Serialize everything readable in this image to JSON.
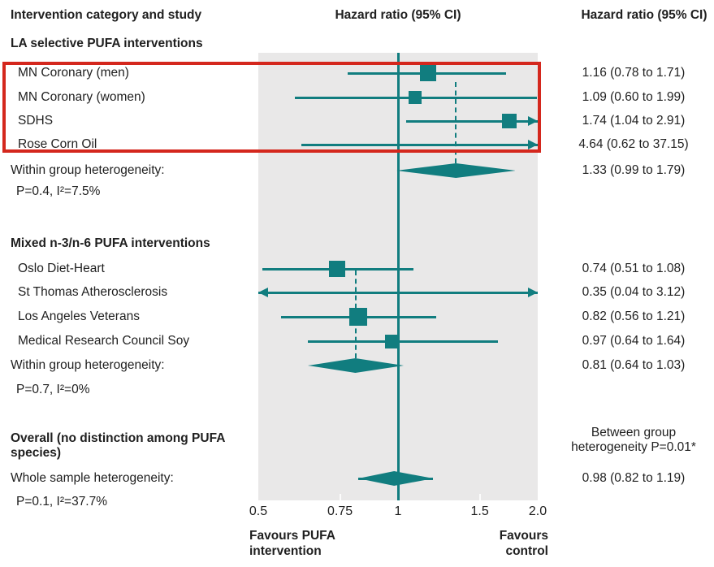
{
  "header": {
    "left": "Intervention category and study",
    "center": "Hazard ratio (95% CI)",
    "right": "Hazard ratio (95% CI)"
  },
  "colors": {
    "teal": "#117d7f",
    "plot_background": "#e9e8e8",
    "highlight_red": "#d4271d",
    "text": "#1f1f1f"
  },
  "chart_data": {
    "type": "forest",
    "x_scale": "log",
    "x_axis": {
      "min": 0.5,
      "max": 2.0,
      "reference_line": 1,
      "ticks": [
        {
          "value": 0.5,
          "label": "0.5"
        },
        {
          "value": 0.75,
          "label": "0.75"
        },
        {
          "value": 1,
          "label": "1"
        },
        {
          "value": 1.5,
          "label": "1.5"
        },
        {
          "value": 2,
          "label": "2.0"
        }
      ]
    },
    "direction_labels": {
      "left": [
        "Favours PUFA",
        "intervention"
      ],
      "right": [
        "Favours",
        "control"
      ]
    },
    "groups": [
      {
        "header": "LA selective PUFA interventions",
        "studies": [
          {
            "label": "MN Coronary (men)",
            "hr": 1.16,
            "ci_low": 0.78,
            "ci_high": 1.71,
            "ci_text": "1.16 (0.78 to 1.71)",
            "marker_size": 20
          },
          {
            "label": "MN Coronary (women)",
            "hr": 1.09,
            "ci_low": 0.6,
            "ci_high": 1.99,
            "ci_text": "1.09 (0.60 to 1.99)",
            "marker_size": 16
          },
          {
            "label": "SDHS",
            "hr": 1.74,
            "ci_low": 1.04,
            "ci_high": 2.91,
            "ci_text": "1.74 (1.04 to 2.91)",
            "marker_size": 18
          },
          {
            "label": "Rose Corn Oil",
            "hr": 4.64,
            "ci_low": 0.62,
            "ci_high": 37.15,
            "ci_text": "4.64 (0.62 to 37.15)"
          }
        ],
        "summary": {
          "label": "Within group heterogeneity:",
          "hr": 1.33,
          "ci_low": 0.99,
          "ci_high": 1.79,
          "ci_text": "1.33 (0.99 to 1.79)",
          "stats": "P=0.4, I²=7.5%"
        }
      },
      {
        "header": "Mixed n-3/n-6 PUFA interventions",
        "studies": [
          {
            "label": "Oslo Diet-Heart",
            "hr": 0.74,
            "ci_low": 0.51,
            "ci_high": 1.08,
            "ci_text": "0.74 (0.51 to 1.08)",
            "marker_size": 20
          },
          {
            "label": "St Thomas Atherosclerosis",
            "hr": 0.35,
            "ci_low": 0.04,
            "ci_high": 3.12,
            "ci_text": "0.35 (0.04 to 3.12)"
          },
          {
            "label": "Los Angeles Veterans",
            "hr": 0.82,
            "ci_low": 0.56,
            "ci_high": 1.21,
            "ci_text": "0.82 (0.56 to 1.21)",
            "marker_size": 22
          },
          {
            "label": "Medical Research Council Soy",
            "hr": 0.97,
            "ci_low": 0.64,
            "ci_high": 1.64,
            "ci_text": "0.97 (0.64 to 1.64)",
            "marker_size": 17
          }
        ],
        "summary": {
          "label": "Within group heterogeneity:",
          "hr": 0.81,
          "ci_low": 0.64,
          "ci_high": 1.03,
          "ci_text": "0.81 (0.64 to 1.03)",
          "stats": "P=0.7, I²=0%"
        }
      }
    ],
    "overall": {
      "header": "Overall (no distinction among PUFA species)",
      "between_group_note": [
        "Between group",
        "heterogeneity P=0.01*"
      ],
      "summary": {
        "label": "Whole sample heterogeneity:",
        "hr": 0.98,
        "ci_low": 0.82,
        "ci_high": 1.19,
        "ci_text": "0.98 (0.82 to 1.19)",
        "stats": "P=0.1, I²=37.7%"
      }
    }
  },
  "annotation": {
    "highlight_color": "#d4271d"
  }
}
